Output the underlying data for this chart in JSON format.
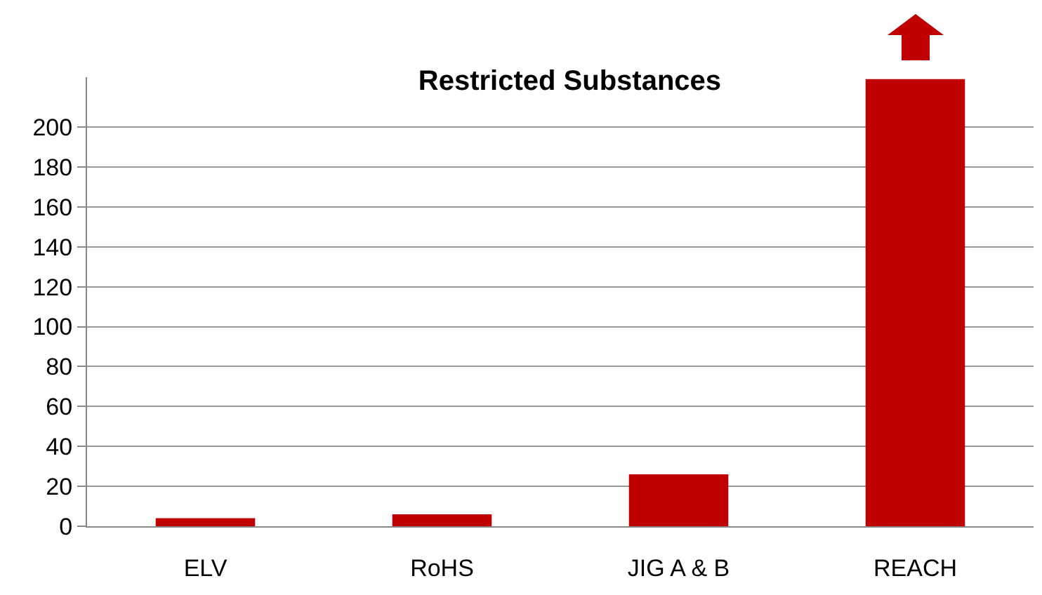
{
  "chart_data": {
    "type": "bar",
    "title": "Restricted Substances",
    "categories": [
      "ELV",
      "RoHS",
      "JIG A & B",
      "REACH"
    ],
    "values": [
      4,
      6,
      26,
      224
    ],
    "color": "#c00000",
    "ylim": [
      0,
      225
    ],
    "yticks": [
      0,
      20,
      40,
      60,
      80,
      100,
      120,
      140,
      160,
      180,
      200
    ],
    "grid": "y"
  }
}
